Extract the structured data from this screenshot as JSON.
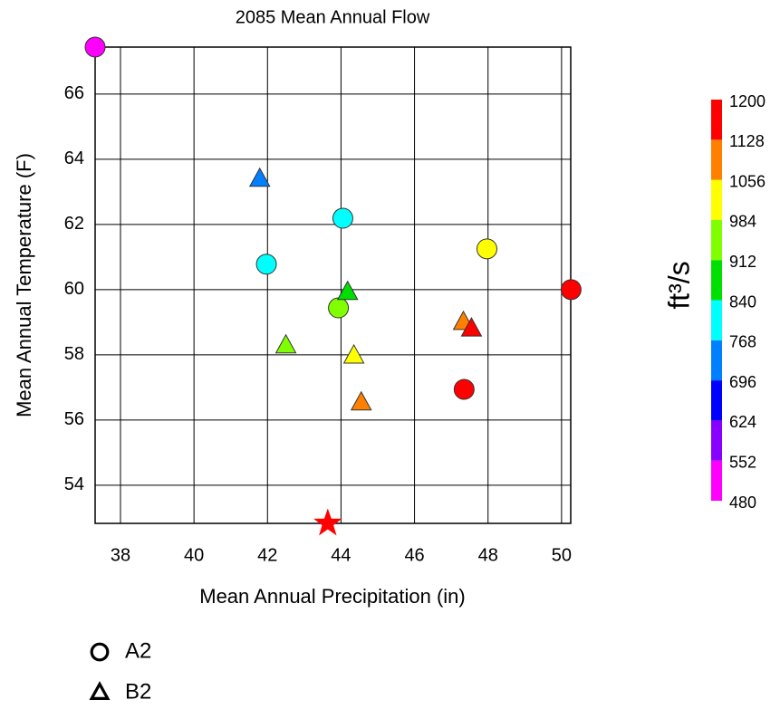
{
  "chart_data": {
    "type": "scatter",
    "title": "2085 Mean Annual Flow",
    "x_label": "Mean Annual Precipitation (in)",
    "y_label": "Mean Annual Temperature (F)",
    "xlim": [
      37.31,
      50.25
    ],
    "ylim": [
      52.83,
      67.44
    ],
    "xticks": [
      38,
      40,
      42,
      44,
      46,
      48,
      50
    ],
    "yticks": [
      54,
      56,
      58,
      60,
      62,
      64,
      66
    ],
    "grid": true,
    "series": [
      {
        "name": "A2",
        "marker": "circle",
        "x": [
          37.31,
          41.97,
          44.05,
          43.93,
          47.97,
          50.26,
          47.35
        ],
        "values": [
          67.44,
          60.78,
          62.19,
          59.44,
          61.25,
          60.0,
          56.94
        ],
        "flows": [
          500,
          800,
          800,
          950,
          1020,
          1180,
          1180
        ]
      },
      {
        "name": "B2",
        "marker": "triangle",
        "x": [
          41.79,
          44.18,
          42.5,
          44.35,
          47.33,
          47.55,
          44.55
        ],
        "values": [
          63.39,
          59.92,
          58.28,
          57.97,
          59.0,
          58.8,
          56.53
        ],
        "flows": [
          720,
          870,
          950,
          1020,
          1100,
          1180,
          1100
        ]
      },
      {
        "marker": "star",
        "x": [
          43.64
        ],
        "values": [
          52.83
        ],
        "flows": [
          1180
        ]
      }
    ],
    "colorbar": {
      "label": "ft³/s",
      "ticks": [
        480,
        552,
        624,
        696,
        768,
        840,
        912,
        984,
        1056,
        1128,
        1200
      ],
      "colors": [
        "#ff00ff",
        "#8800ff",
        "#0000ff",
        "#0080ff",
        "#00ffff",
        "#00e000",
        "#80ff00",
        "#ffff00",
        "#ff8000",
        "#ff0000"
      ]
    }
  }
}
